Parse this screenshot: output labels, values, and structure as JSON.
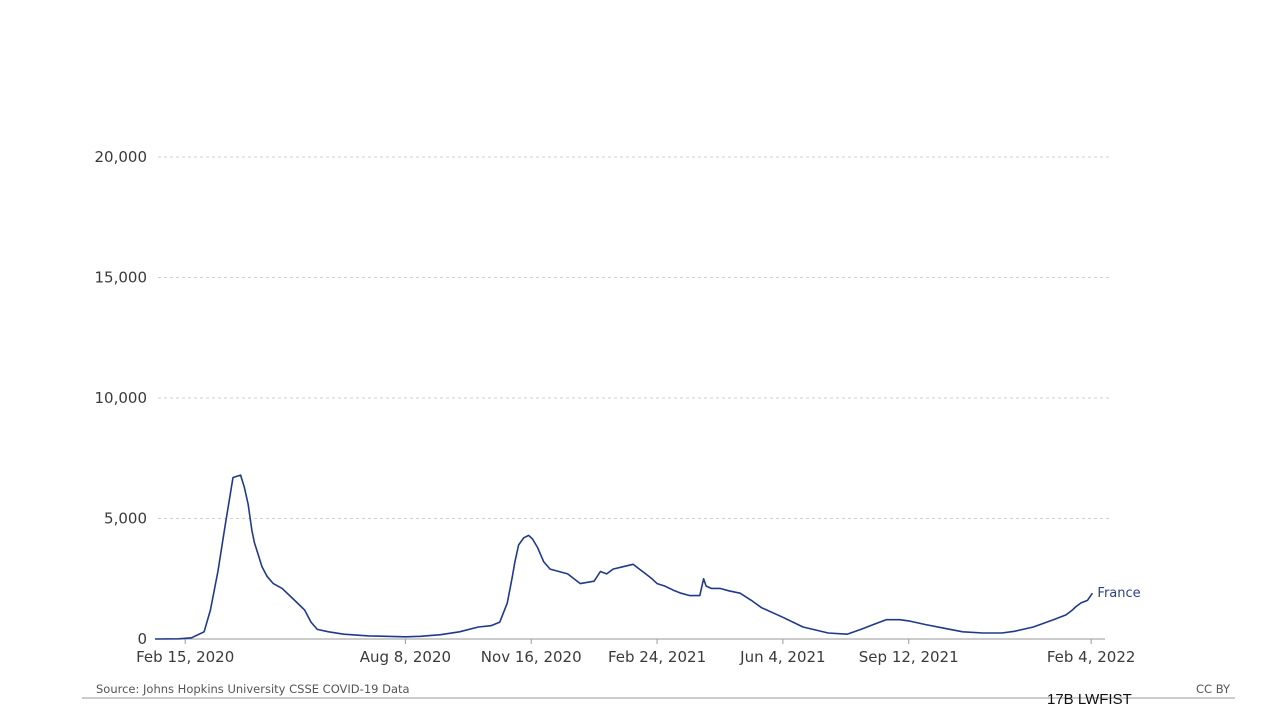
{
  "chart_data": {
    "type": "line",
    "title": "",
    "xlabel": "",
    "ylabel": "",
    "ylim": [
      0,
      20000
    ],
    "yticks": [
      "0",
      "5,000",
      "10,000",
      "15,000",
      "20,000"
    ],
    "ytick_values": [
      0,
      5000,
      10000,
      15000,
      20000
    ],
    "xtick_labels": [
      "Feb 15, 2020",
      "Aug 8, 2020",
      "Nov 16, 2020",
      "Feb 24, 2021",
      "Jun 4, 2021",
      "Sep 12, 2021",
      "Feb 4, 2022"
    ],
    "xtick_dates": [
      "2020-02-15",
      "2020-08-08",
      "2020-11-16",
      "2021-02-24",
      "2021-06-04",
      "2021-09-12",
      "2022-02-04"
    ],
    "xlim": [
      "2020-01-22",
      "2022-02-15"
    ],
    "grid": true,
    "line_color": "#1f3a8a",
    "series": [
      {
        "name": "France",
        "x": [
          "2020-01-22",
          "2020-02-10",
          "2020-02-20",
          "2020-03-01",
          "2020-03-06",
          "2020-03-12",
          "2020-03-18",
          "2020-03-24",
          "2020-03-30",
          "2020-04-02",
          "2020-04-05",
          "2020-04-08",
          "2020-04-10",
          "2020-04-13",
          "2020-04-16",
          "2020-04-20",
          "2020-04-25",
          "2020-05-02",
          "2020-05-10",
          "2020-05-20",
          "2020-05-25",
          "2020-05-30",
          "2020-06-08",
          "2020-06-20",
          "2020-07-10",
          "2020-08-08",
          "2020-08-20",
          "2020-09-05",
          "2020-09-20",
          "2020-10-05",
          "2020-10-15",
          "2020-10-22",
          "2020-10-28",
          "2020-11-01",
          "2020-11-03",
          "2020-11-06",
          "2020-11-10",
          "2020-11-14",
          "2020-11-17",
          "2020-11-21",
          "2020-11-26",
          "2020-12-01",
          "2020-12-08",
          "2020-12-15",
          "2020-12-25",
          "2021-01-05",
          "2021-01-10",
          "2021-01-15",
          "2021-01-20",
          "2021-01-28",
          "2021-02-05",
          "2021-02-10",
          "2021-02-15",
          "2021-02-20",
          "2021-02-24",
          "2021-03-02",
          "2021-03-10",
          "2021-03-15",
          "2021-03-22",
          "2021-03-30",
          "2021-04-02",
          "2021-04-04",
          "2021-04-08",
          "2021-04-15",
          "2021-04-22",
          "2021-05-01",
          "2021-05-10",
          "2021-05-18",
          "2021-06-04",
          "2021-06-20",
          "2021-07-10",
          "2021-07-25",
          "2021-08-05",
          "2021-08-15",
          "2021-08-25",
          "2021-09-05",
          "2021-09-12",
          "2021-09-25",
          "2021-10-10",
          "2021-10-25",
          "2021-11-10",
          "2021-11-25",
          "2021-12-05",
          "2021-12-20",
          "2022-01-05",
          "2022-01-15",
          "2022-01-20",
          "2022-01-23",
          "2022-01-27",
          "2022-02-01",
          "2022-02-05"
        ],
        "y": [
          0,
          10,
          50,
          300,
          1200,
          2800,
          4800,
          6700,
          6800,
          6300,
          5600,
          4500,
          4000,
          3500,
          3000,
          2600,
          2300,
          2100,
          1700,
          1200,
          700,
          400,
          300,
          200,
          130,
          90,
          110,
          180,
          300,
          500,
          550,
          700,
          1500,
          2600,
          3200,
          3900,
          4200,
          4300,
          4150,
          3800,
          3200,
          2900,
          2800,
          2700,
          2300,
          2400,
          2800,
          2700,
          2900,
          3000,
          3100,
          2900,
          2700,
          2500,
          2300,
          2200,
          2000,
          1900,
          1800,
          1800,
          2500,
          2200,
          2100,
          2100,
          2000,
          1900,
          1600,
          1300,
          900,
          500,
          250,
          200,
          400,
          600,
          800,
          800,
          750,
          600,
          450,
          300,
          250,
          250,
          320,
          500,
          800,
          1000,
          1200,
          1350,
          1500,
          1600,
          1900
        ]
      }
    ]
  },
  "footer": {
    "source": "Source: Johns Hopkins University CSSE COVID-19 Data",
    "license": "CC BY"
  },
  "slide": {
    "code": "17B LWFIST"
  }
}
